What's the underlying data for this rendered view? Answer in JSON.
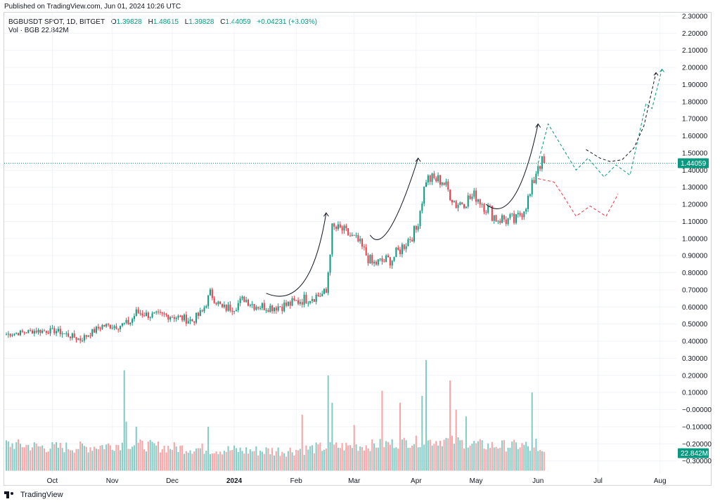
{
  "published": "Published on TradingView.com, Jun 01, 2024 10:26 UTC",
  "legend": {
    "symbol": "BGBUSDT SPOT, 1D, BITGET",
    "o_label": "O",
    "o": "1.39828",
    "h_label": "H",
    "h": "1.48615",
    "l_label": "L",
    "l": "1.39828",
    "c_label": "C",
    "c": "1.44059",
    "change": "+0.04231 (+3.03%)",
    "vol_label": "Vol · BGB",
    "vol_value": "22.842M"
  },
  "footer": {
    "brand": "TradingView"
  },
  "colors": {
    "up": "#089981",
    "down": "#f23645",
    "up_vol": "#80cbc4",
    "down_vol": "#faa1a4",
    "grid": "#f0f3fa",
    "axis_text": "#131722"
  },
  "chart_data": {
    "type": "candlestick",
    "title": "BGBUSDT SPOT, 1D, BITGET",
    "price_axis_ticks": [
      "2.30000",
      "2.20000",
      "2.10000",
      "2.00000",
      "1.90000",
      "1.80000",
      "1.70000",
      "1.60000",
      "1.50000",
      "1.40000",
      "1.30000",
      "1.20000",
      "1.10000",
      "1.00000",
      "0.90000",
      "0.80000",
      "0.70000",
      "0.60000",
      "0.50000",
      "0.40000",
      "0.30000",
      "0.20000",
      "0.10000",
      "−0.00000",
      "−0.10000",
      "−0.20000",
      "−0.30000"
    ],
    "price_axis_values": [
      2.3,
      2.2,
      2.1,
      2.0,
      1.9,
      1.8,
      1.7,
      1.6,
      1.5,
      1.4,
      1.3,
      1.2,
      1.1,
      1.0,
      0.9,
      0.8,
      0.7,
      0.6,
      0.5,
      0.4,
      0.3,
      0.2,
      0.1,
      0.0,
      -0.1,
      -0.2,
      -0.3
    ],
    "ylim": [
      -0.32,
      2.32
    ],
    "last_price_label": "1.44059",
    "last_price": 1.44059,
    "volume_label": "22.842M",
    "volume_marker_value": -0.255,
    "time_axis_labels": [
      "Oct",
      "Nov",
      "Dec",
      "2024",
      "Feb",
      "Mar",
      "Apr",
      "May",
      "Jun",
      "Jul",
      "Aug"
    ],
    "time_axis_index": [
      23,
      53,
      83,
      114,
      145,
      174,
      205,
      235,
      266,
      296,
      327
    ],
    "bars": 270,
    "price_anchors": [
      [
        0,
        0.44
      ],
      [
        14,
        0.46
      ],
      [
        25,
        0.46
      ],
      [
        37,
        0.41
      ],
      [
        48,
        0.49
      ],
      [
        56,
        0.49
      ],
      [
        62,
        0.51
      ],
      [
        65,
        0.57
      ],
      [
        72,
        0.55
      ],
      [
        82,
        0.55
      ],
      [
        93,
        0.52
      ],
      [
        98,
        0.57
      ],
      [
        102,
        0.68
      ],
      [
        108,
        0.59
      ],
      [
        114,
        0.6
      ],
      [
        119,
        0.65
      ],
      [
        124,
        0.61
      ],
      [
        132,
        0.6
      ],
      [
        140,
        0.61
      ],
      [
        150,
        0.65
      ],
      [
        160,
        0.68
      ],
      [
        163,
        1.06
      ],
      [
        168,
        1.05
      ],
      [
        176,
        0.98
      ],
      [
        183,
        0.85
      ],
      [
        193,
        0.88
      ],
      [
        205,
        1.05
      ],
      [
        210,
        1.35
      ],
      [
        218,
        1.34
      ],
      [
        225,
        1.2
      ],
      [
        235,
        1.25
      ],
      [
        245,
        1.12
      ],
      [
        255,
        1.1
      ],
      [
        262,
        1.25
      ],
      [
        266,
        1.44059
      ]
    ],
    "volume_anchors": [
      [
        0,
        -0.2
      ],
      [
        20,
        -0.22
      ],
      [
        40,
        -0.22
      ],
      [
        60,
        -0.2
      ],
      [
        80,
        -0.22
      ],
      [
        100,
        -0.23
      ],
      [
        120,
        -0.24
      ],
      [
        140,
        -0.24
      ],
      [
        160,
        -0.22
      ],
      [
        180,
        -0.21
      ],
      [
        200,
        -0.19
      ],
      [
        220,
        -0.18
      ],
      [
        240,
        -0.21
      ],
      [
        260,
        -0.21
      ],
      [
        266,
        -0.26
      ]
    ],
    "volume_spikes": [
      [
        59,
        0.23
      ],
      [
        60,
        -0.07
      ],
      [
        65,
        -0.1
      ],
      [
        101,
        -0.1
      ],
      [
        148,
        -0.03
      ],
      [
        161,
        0.2
      ],
      [
        163,
        0.04
      ],
      [
        174,
        -0.09
      ],
      [
        188,
        0.11
      ],
      [
        197,
        0.04
      ],
      [
        208,
        0.08
      ],
      [
        210,
        0.29
      ],
      [
        222,
        0.17
      ],
      [
        225,
        -0.0
      ],
      [
        230,
        -0.04
      ],
      [
        263,
        0.1
      ],
      [
        265,
        -0.17
      ]
    ],
    "projections": [
      {
        "color": "#089981",
        "points": [
          [
            266,
            1.44
          ],
          [
            271,
            1.67
          ],
          [
            285,
            1.4
          ],
          [
            291,
            1.47
          ],
          [
            299,
            1.36
          ],
          [
            305,
            1.43
          ],
          [
            312,
            1.37
          ],
          [
            320,
            1.79
          ],
          [
            323,
            1.76
          ],
          [
            328,
            1.99
          ]
        ]
      },
      {
        "color": "#f23645",
        "points": [
          [
            266,
            1.35
          ],
          [
            274,
            1.33
          ],
          [
            278,
            1.26
          ],
          [
            285,
            1.13
          ],
          [
            292,
            1.19
          ],
          [
            300,
            1.13
          ],
          [
            306,
            1.26
          ]
        ]
      },
      {
        "color": "#131722",
        "points": [
          [
            290,
            1.52
          ],
          [
            297,
            1.47
          ],
          [
            302,
            1.45
          ],
          [
            308,
            1.46
          ],
          [
            314,
            1.53
          ],
          [
            319,
            1.66
          ],
          [
            325,
            1.97
          ]
        ]
      }
    ],
    "arcs": [
      {
        "from": [
          130,
          0.68
        ],
        "ctrl": [
          152,
          0.57
        ],
        "to": [
          160,
          1.15
        ]
      },
      {
        "from": [
          182,
          1.02
        ],
        "ctrl": [
          190,
          0.88
        ],
        "to": [
          206,
          1.47
        ]
      },
      {
        "from": [
          240,
          1.2
        ],
        "ctrl": [
          255,
          1.06
        ],
        "to": [
          266,
          1.67
        ]
      }
    ]
  }
}
